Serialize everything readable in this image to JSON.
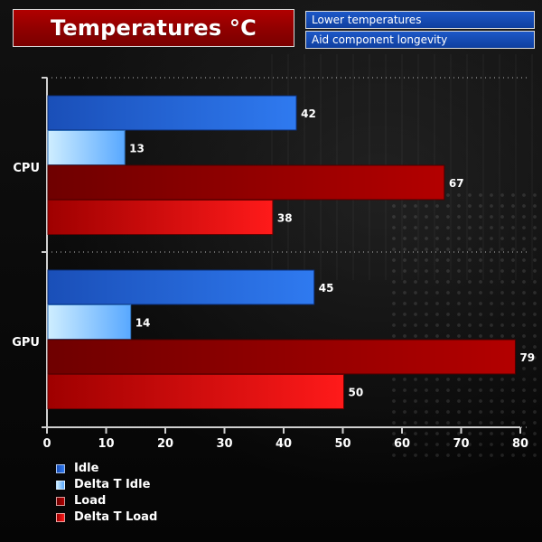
{
  "title": "Temperatures °C",
  "notes": [
    "Lower temperatures",
    "Aid component longevity"
  ],
  "colors": {
    "idle": "#1f63d6",
    "delta_t_idle": "#9fd6ff",
    "load": "#a10000",
    "delta_t_load": "#e00000",
    "title_bg": "#9a0000",
    "note_bg": "#154bb5"
  },
  "chart_data": {
    "type": "bar",
    "orientation": "horizontal",
    "categories": [
      "CPU",
      "GPU"
    ],
    "series": [
      {
        "name": "Idle",
        "values": [
          42,
          45
        ]
      },
      {
        "name": "Delta T Idle",
        "values": [
          13,
          14
        ]
      },
      {
        "name": "Load",
        "values": [
          67,
          79
        ]
      },
      {
        "name": "Delta T Load",
        "values": [
          38,
          50
        ]
      }
    ],
    "title": "",
    "xlabel": "",
    "ylabel": "",
    "xlim": [
      0,
      80
    ],
    "xticks": [
      0,
      10,
      20,
      30,
      40,
      50,
      60,
      70,
      80
    ],
    "grid": "horizontal dotted separators",
    "legend": "bottom-left"
  }
}
